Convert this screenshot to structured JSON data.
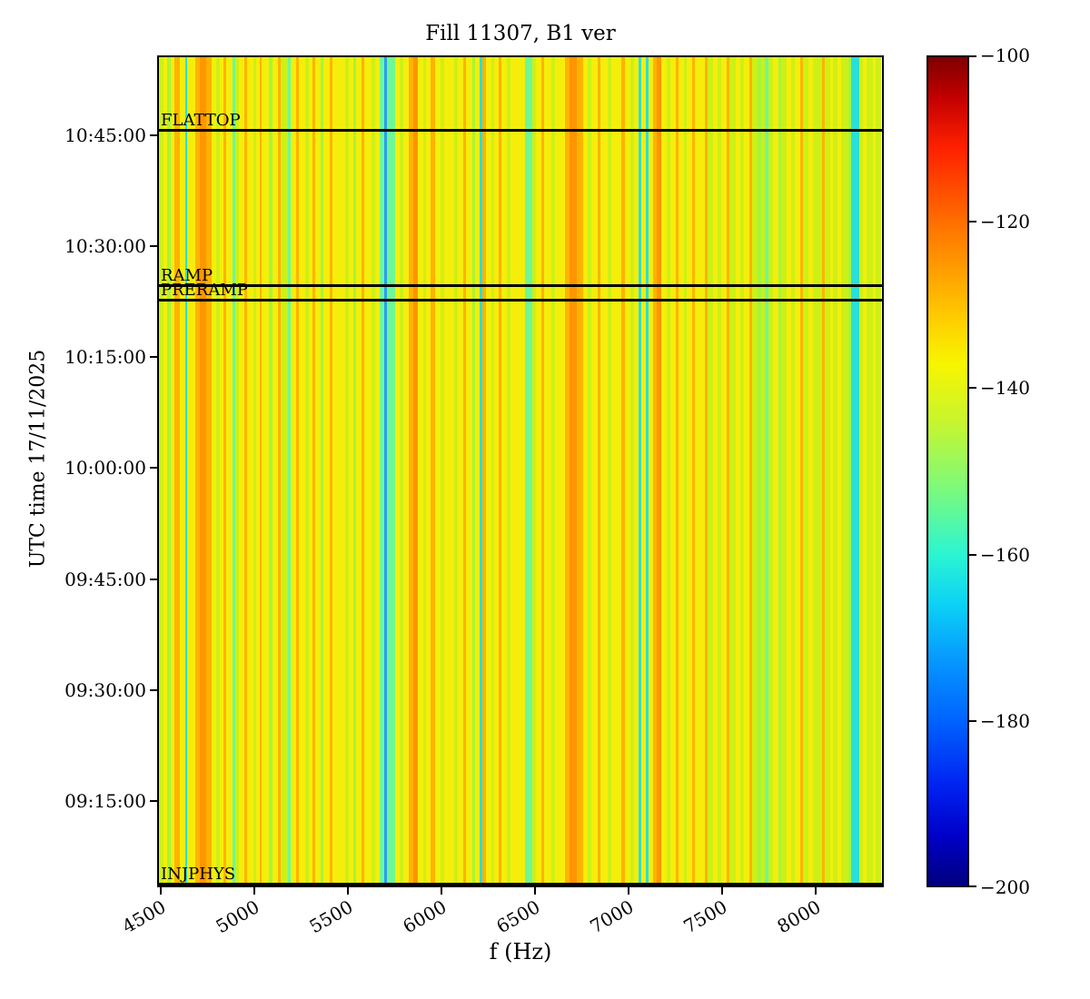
{
  "title": "Fill 11307, B1 ver",
  "x_axis": {
    "label": "f (Hz)",
    "ticks": [
      {
        "t": "4500",
        "f": 0.005
      },
      {
        "t": "5000",
        "f": 0.1338
      },
      {
        "t": "5500",
        "f": 0.2625
      },
      {
        "t": "6000",
        "f": 0.3913
      },
      {
        "t": "6500",
        "f": 0.52
      },
      {
        "t": "7000",
        "f": 0.6488
      },
      {
        "t": "7500",
        "f": 0.7775
      },
      {
        "t": "8000",
        "f": 0.9063
      }
    ]
  },
  "y_axis": {
    "label": "UTC time 17/11/2025",
    "ticks": [
      {
        "t": "10:45:00",
        "f": 0.0961
      },
      {
        "t": "10:30:00",
        "f": 0.2294
      },
      {
        "t": "10:15:00",
        "f": 0.3628
      },
      {
        "t": "10:00:00",
        "f": 0.4961
      },
      {
        "t": "09:45:00",
        "f": 0.6295
      },
      {
        "t": "09:30:00",
        "f": 0.7628
      },
      {
        "t": "09:15:00",
        "f": 0.8962
      }
    ]
  },
  "colorbar": {
    "ticks": [
      {
        "t": "−100",
        "f": 0.0
      },
      {
        "t": "−120",
        "f": 0.2
      },
      {
        "t": "−140",
        "f": 0.4
      },
      {
        "t": "−160",
        "f": 0.6
      },
      {
        "t": "−180",
        "f": 0.8
      },
      {
        "t": "−200",
        "f": 1.0
      }
    ],
    "gradient_stops": [
      {
        "p": 0,
        "c": "#7f0000"
      },
      {
        "p": 5,
        "c": "#c40000"
      },
      {
        "p": 11,
        "c": "#ff2100"
      },
      {
        "p": 21,
        "c": "#ff7800"
      },
      {
        "p": 31,
        "c": "#ffc800"
      },
      {
        "p": 37,
        "c": "#f8f500"
      },
      {
        "p": 44,
        "c": "#c8f52e"
      },
      {
        "p": 52,
        "c": "#7dfa7a"
      },
      {
        "p": 60,
        "c": "#2cf5d2"
      },
      {
        "p": 66,
        "c": "#0cd2f5"
      },
      {
        "p": 73,
        "c": "#0696ff"
      },
      {
        "p": 80,
        "c": "#0064ff"
      },
      {
        "p": 88,
        "c": "#0022f0"
      },
      {
        "p": 94,
        "c": "#0000c8"
      },
      {
        "p": 100,
        "c": "#00007f"
      }
    ]
  },
  "chart_data": {
    "type": "heatmap",
    "title": "Fill 11307, B1 ver",
    "xlabel": "f (Hz)",
    "ylabel": "UTC time 17/11/2025",
    "date": "17/11/2025",
    "x_range_hz": [
      4480,
      8365
    ],
    "x_tick_values_hz": [
      4500,
      5000,
      5500,
      6000,
      6500,
      7000,
      7500,
      8000
    ],
    "y_time_ticks": [
      "10:45:00",
      "10:30:00",
      "10:15:00",
      "10:00:00",
      "09:45:00",
      "09:30:00",
      "09:15:00"
    ],
    "y_time_range": [
      "09:03:00",
      "10:56:00"
    ],
    "value_range_db": [
      -200,
      -100
    ],
    "colorbar_tick_values": [
      -100,
      -120,
      -140,
      -160,
      -180,
      -200
    ],
    "colormap": "jet",
    "legend_position": "right-colorbar",
    "grid": false,
    "markers": [
      {
        "label": "FLATTOP",
        "f": 0.0895
      },
      {
        "label": "RAMP",
        "f": 0.2773
      },
      {
        "label": "PRERAMP",
        "f": 0.2948
      },
      {
        "label": "INJPHYS",
        "f": 1.0
      }
    ],
    "palette": {
      "y": "#f5ee0a",
      "c": "#cdf017",
      "g": "#a5f53c",
      "m": "#6ef797",
      "t": "#2adfd8",
      "b": "#2b9cf2",
      "o": "#ffb300",
      "d": "#ff9500"
    },
    "stripes": [
      [
        5,
        "c"
      ],
      [
        4,
        "y"
      ],
      [
        4,
        "g"
      ],
      [
        4,
        "y"
      ],
      [
        6,
        "o"
      ],
      [
        6,
        "y"
      ],
      [
        2,
        "t"
      ],
      [
        9,
        "y"
      ],
      [
        5,
        "o"
      ],
      [
        7,
        "d"
      ],
      [
        6,
        "o"
      ],
      [
        5,
        "y"
      ],
      [
        4,
        "c"
      ],
      [
        4,
        "y"
      ],
      [
        3,
        "o"
      ],
      [
        8,
        "y"
      ],
      [
        3,
        "m"
      ],
      [
        4,
        "c"
      ],
      [
        6,
        "y"
      ],
      [
        3,
        "o"
      ],
      [
        7,
        "y"
      ],
      [
        3,
        "c"
      ],
      [
        4,
        "y"
      ],
      [
        2,
        "o"
      ],
      [
        8,
        "y"
      ],
      [
        4,
        "g"
      ],
      [
        6,
        "y"
      ],
      [
        3,
        "o"
      ],
      [
        8,
        "c"
      ],
      [
        3,
        "m"
      ],
      [
        6,
        "y"
      ],
      [
        3,
        "o"
      ],
      [
        7,
        "y"
      ],
      [
        4,
        "c"
      ],
      [
        4,
        "y"
      ],
      [
        3,
        "o"
      ],
      [
        6,
        "y"
      ],
      [
        3,
        "g"
      ],
      [
        7,
        "y"
      ],
      [
        3,
        "o"
      ],
      [
        8,
        "y"
      ],
      [
        6,
        "y"
      ],
      [
        4,
        "c"
      ],
      [
        5,
        "y"
      ],
      [
        3,
        "g"
      ],
      [
        6,
        "y"
      ],
      [
        3,
        "o"
      ],
      [
        8,
        "y"
      ],
      [
        4,
        "c"
      ],
      [
        5,
        "y"
      ],
      [
        6,
        "m"
      ],
      [
        3,
        "b"
      ],
      [
        9,
        "m"
      ],
      [
        5,
        "y"
      ],
      [
        4,
        "c"
      ],
      [
        6,
        "y"
      ],
      [
        5,
        "o"
      ],
      [
        5,
        "d"
      ],
      [
        6,
        "y"
      ],
      [
        3,
        "c"
      ],
      [
        5,
        "y"
      ],
      [
        5,
        "o"
      ],
      [
        6,
        "y"
      ],
      [
        4,
        "c"
      ],
      [
        6,
        "y"
      ],
      [
        5,
        "y"
      ],
      [
        4,
        "c"
      ],
      [
        6,
        "y"
      ],
      [
        3,
        "o"
      ],
      [
        7,
        "y"
      ],
      [
        3,
        "g"
      ],
      [
        5,
        "y"
      ],
      [
        3,
        "t"
      ],
      [
        4,
        "o"
      ],
      [
        6,
        "y"
      ],
      [
        3,
        "c"
      ],
      [
        5,
        "y"
      ],
      [
        3,
        "o"
      ],
      [
        6,
        "y"
      ],
      [
        4,
        "c"
      ],
      [
        11,
        "y"
      ],
      [
        5,
        "y"
      ],
      [
        8,
        "m"
      ],
      [
        5,
        "c"
      ],
      [
        6,
        "y"
      ],
      [
        3,
        "o"
      ],
      [
        8,
        "y"
      ],
      [
        4,
        "c"
      ],
      [
        6,
        "y"
      ],
      [
        5,
        "y"
      ],
      [
        5,
        "o"
      ],
      [
        8,
        "d"
      ],
      [
        7,
        "o"
      ],
      [
        5,
        "y"
      ],
      [
        4,
        "c"
      ],
      [
        7,
        "y"
      ],
      [
        3,
        "o"
      ],
      [
        8,
        "y"
      ],
      [
        4,
        "c"
      ],
      [
        6,
        "y"
      ],
      [
        5,
        "y"
      ],
      [
        4,
        "o"
      ],
      [
        6,
        "y"
      ],
      [
        4,
        "c"
      ],
      [
        5,
        "y"
      ],
      [
        3,
        "t"
      ],
      [
        5,
        "y"
      ],
      [
        3,
        "t"
      ],
      [
        5,
        "y"
      ],
      [
        4,
        "o"
      ],
      [
        5,
        "d"
      ],
      [
        6,
        "y"
      ],
      [
        4,
        "c"
      ],
      [
        6,
        "y"
      ],
      [
        3,
        "o"
      ],
      [
        7,
        "y"
      ],
      [
        3,
        "c"
      ],
      [
        6,
        "y"
      ],
      [
        3,
        "o"
      ],
      [
        6,
        "y"
      ],
      [
        5,
        "y"
      ],
      [
        3,
        "o"
      ],
      [
        6,
        "c"
      ],
      [
        5,
        "y"
      ],
      [
        4,
        "c"
      ],
      [
        6,
        "y"
      ],
      [
        3,
        "o"
      ],
      [
        7,
        "c"
      ],
      [
        5,
        "y"
      ],
      [
        4,
        "c"
      ],
      [
        6,
        "y"
      ],
      [
        3,
        "o"
      ],
      [
        6,
        "c"
      ],
      [
        4,
        "g"
      ],
      [
        4,
        "c"
      ],
      [
        4,
        "m"
      ],
      [
        5,
        "c"
      ],
      [
        6,
        "y"
      ],
      [
        3,
        "g"
      ],
      [
        6,
        "c"
      ],
      [
        5,
        "y"
      ],
      [
        4,
        "c"
      ],
      [
        6,
        "y"
      ],
      [
        3,
        "o"
      ],
      [
        6,
        "c"
      ],
      [
        5,
        "y"
      ],
      [
        4,
        "c"
      ],
      [
        6,
        "c"
      ],
      [
        3,
        "o"
      ],
      [
        6,
        "c"
      ],
      [
        4,
        "y"
      ],
      [
        5,
        "c"
      ],
      [
        4,
        "y"
      ],
      [
        8,
        "c"
      ],
      [
        3,
        "g"
      ],
      [
        9,
        "t"
      ],
      [
        4,
        "c"
      ],
      [
        4,
        "y"
      ],
      [
        4,
        "c"
      ],
      [
        3,
        "c"
      ],
      [
        3,
        "y"
      ],
      [
        6,
        "c"
      ]
    ]
  }
}
